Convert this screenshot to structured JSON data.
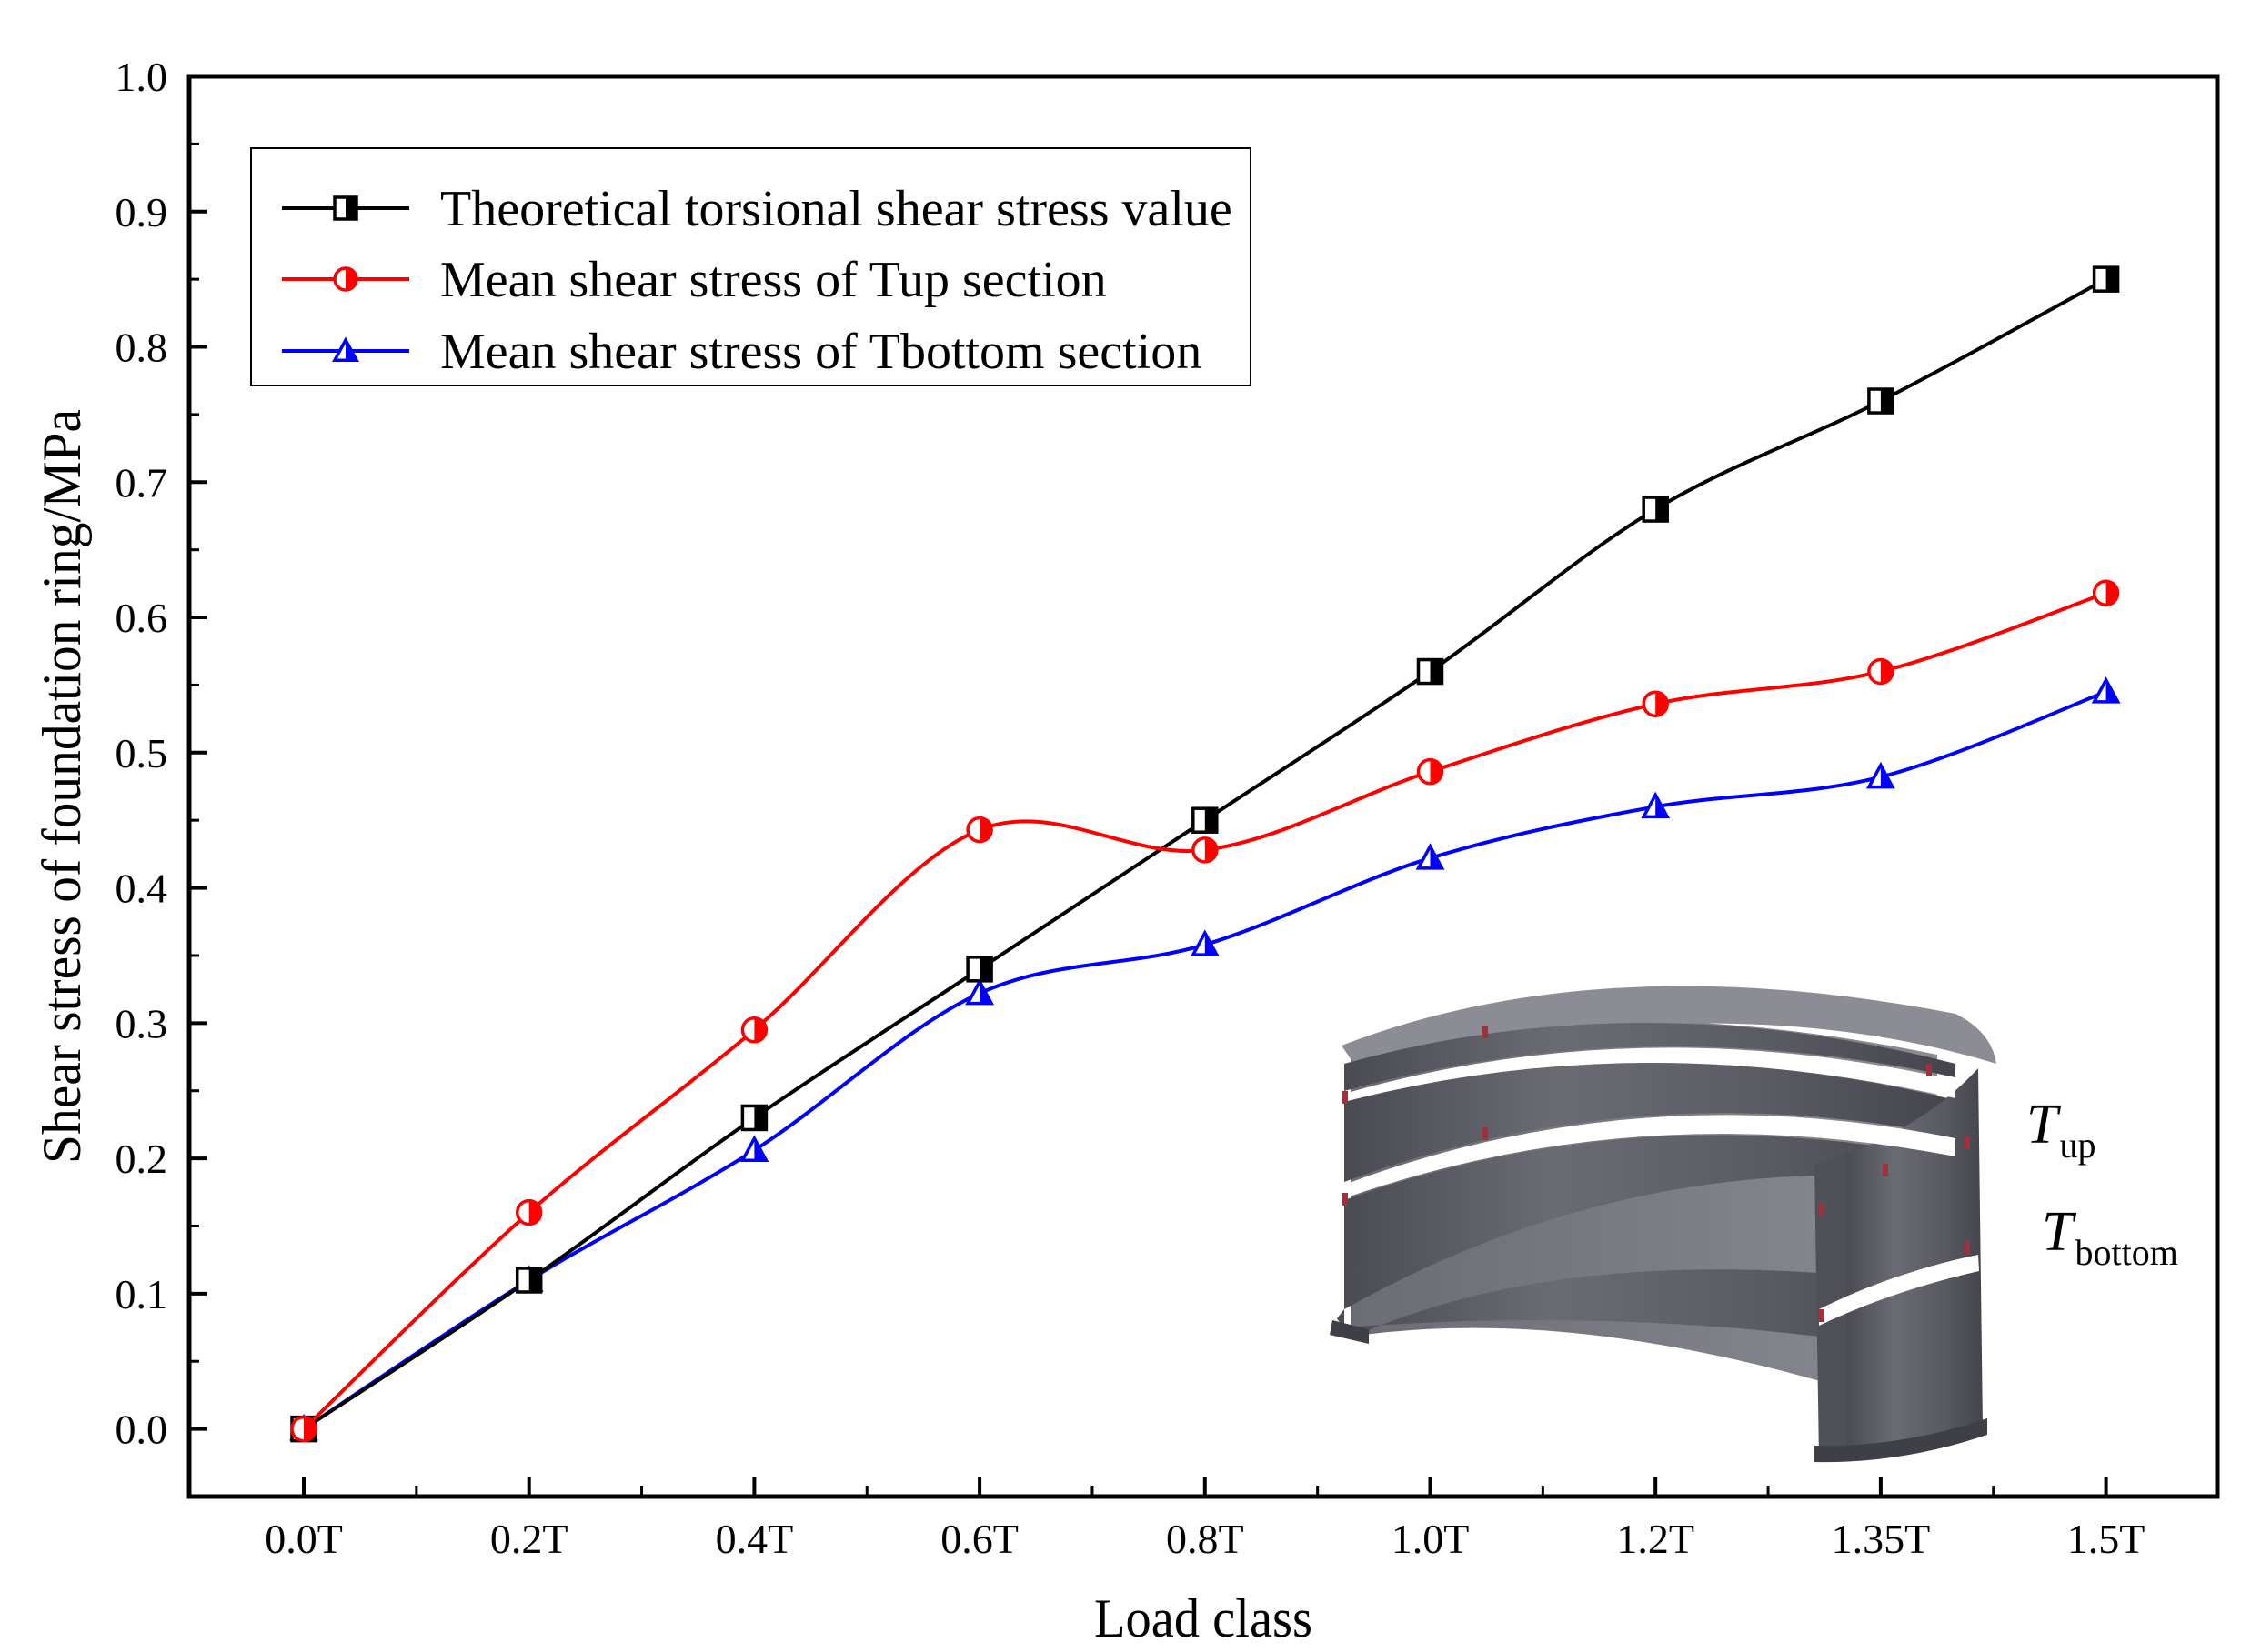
{
  "chart_data": {
    "type": "line",
    "title": "",
    "xlabel": "Load class",
    "ylabel": "Shear stress of foundation ring/MPa",
    "categories": [
      "0.0T",
      "0.2T",
      "0.4T",
      "0.6T",
      "0.8T",
      "1.0T",
      "1.2T",
      "1.35T",
      "1.5T"
    ],
    "ylim": [
      -0.05,
      1.0
    ],
    "yticks": [
      "0.0",
      "0.1",
      "0.2",
      "0.3",
      "0.4",
      "0.5",
      "0.6",
      "0.7",
      "0.8",
      "0.9",
      "1.0"
    ],
    "legend_position": "top-left",
    "series": [
      {
        "name": "Theoretical torsional shear stress value",
        "marker": "half-filled-square",
        "color": "#000000",
        "values": [
          0.0,
          0.11,
          0.23,
          0.34,
          0.45,
          0.56,
          0.68,
          0.76,
          0.85
        ]
      },
      {
        "name": "Mean shear stress of Tup section",
        "marker": "half-filled-circle",
        "color": "#ff0000",
        "values": [
          0.0,
          0.16,
          0.295,
          0.443,
          0.428,
          0.486,
          0.536,
          0.56,
          0.618
        ]
      },
      {
        "name": "Mean shear stress of Tbottom section",
        "marker": "half-filled-triangle",
        "color": "#0000ff",
        "values": [
          0.0,
          0.11,
          0.206,
          0.322,
          0.358,
          0.422,
          0.46,
          0.482,
          0.545
        ]
      }
    ]
  },
  "inset": {
    "label_up": "T",
    "label_up_sub": "up",
    "label_bottom": "T",
    "label_bottom_sub": "bottom",
    "ring_color": "#5f6068",
    "marker_color": "#a0303c"
  }
}
